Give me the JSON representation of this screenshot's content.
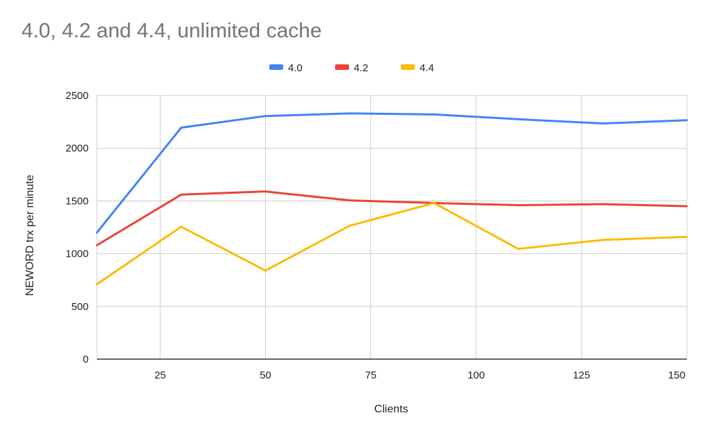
{
  "chart_data": {
    "type": "line",
    "title": "4.0, 4.2 and 4.4, unlimited cache",
    "xlabel": "Clients",
    "ylabel": "NEWORD trx per minute",
    "xlim": [
      10,
      150
    ],
    "ylim": [
      0,
      2500
    ],
    "x_ticks": [
      25,
      50,
      75,
      100,
      125,
      150
    ],
    "y_ticks": [
      0,
      500,
      1000,
      1500,
      2000,
      2500
    ],
    "legend_position": "top",
    "grid": true,
    "x": [
      10,
      30,
      50,
      70,
      90,
      110,
      130,
      150
    ],
    "series": [
      {
        "name": "4.0",
        "color": "#4285f4",
        "values": [
          1200,
          2195,
          2305,
          2330,
          2320,
          2275,
          2235,
          2265
        ]
      },
      {
        "name": "4.2",
        "color": "#ea4335",
        "values": [
          1080,
          1560,
          1590,
          1505,
          1480,
          1460,
          1470,
          1450
        ]
      },
      {
        "name": "4.4",
        "color": "#fbbc04",
        "values": [
          710,
          1255,
          840,
          1265,
          1480,
          1045,
          1130,
          1160
        ]
      }
    ]
  }
}
